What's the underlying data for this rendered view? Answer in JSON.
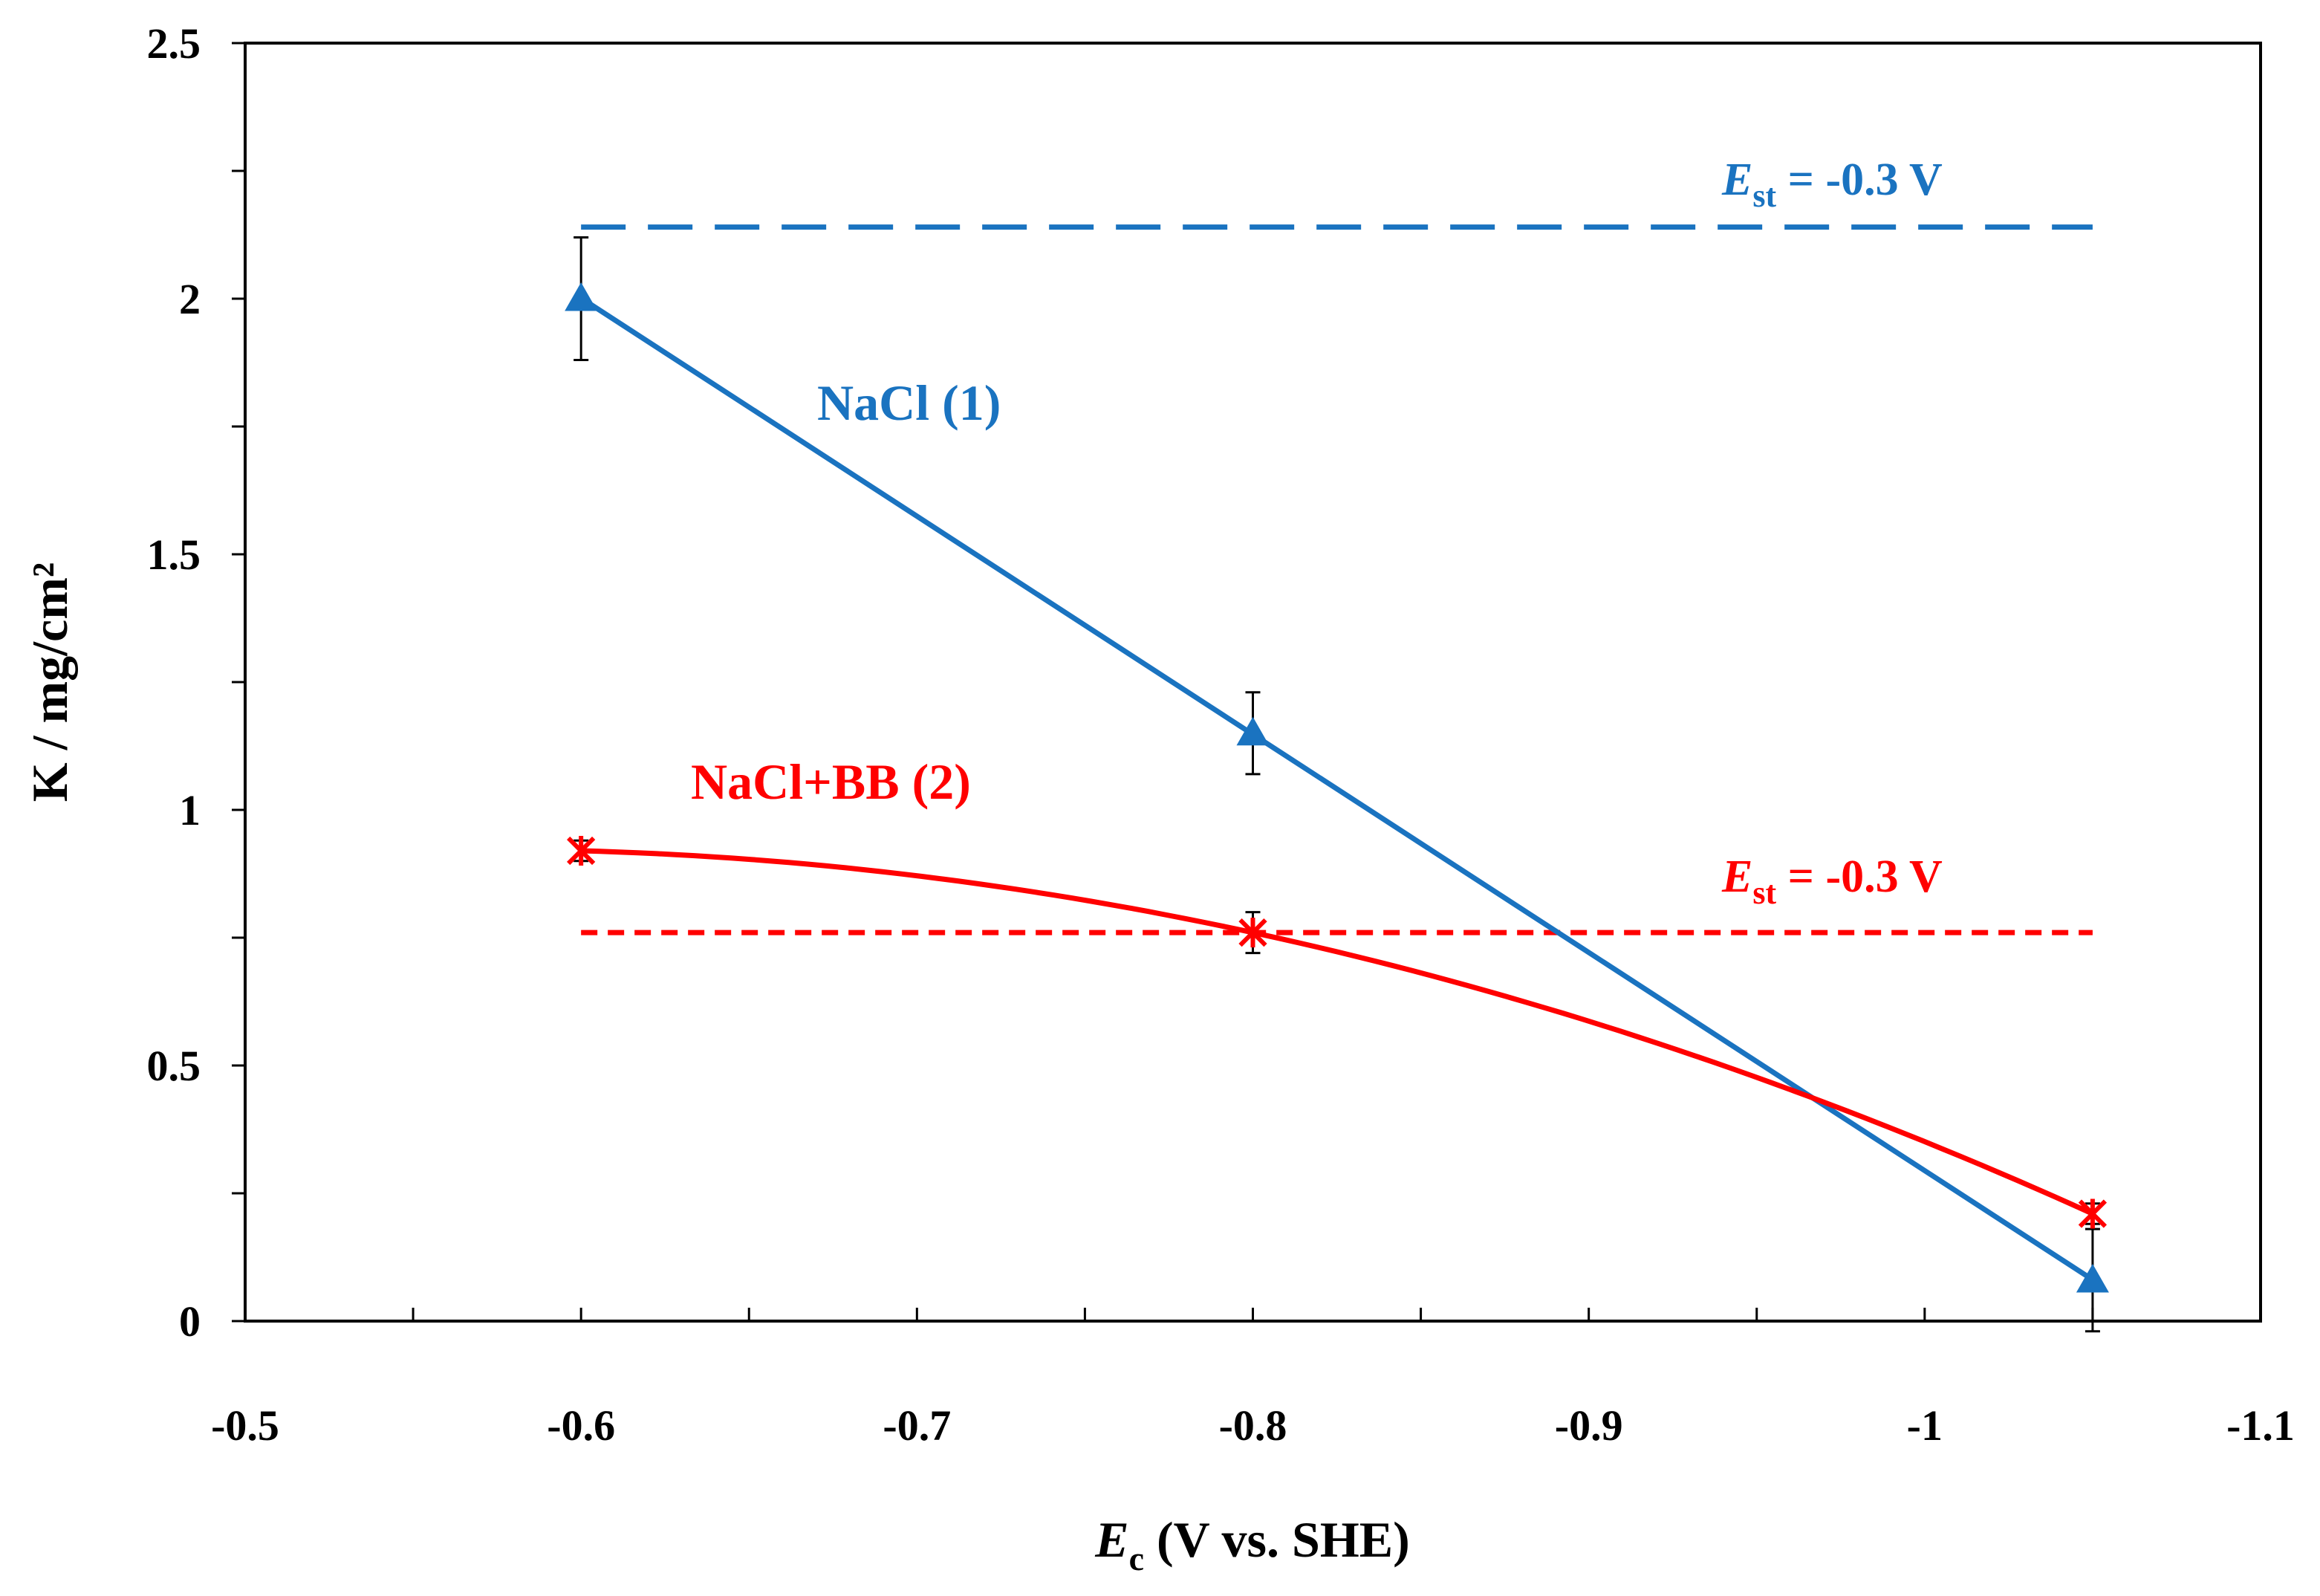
{
  "chart_data": {
    "type": "line",
    "title": "",
    "xlabel": {
      "italic": "E",
      "sub": "c",
      "rest": " (V vs. SHE)"
    },
    "ylabel": "K / mg/cm²",
    "xlim": [
      -0.5,
      -1.1
    ],
    "ylim": [
      0,
      2.5
    ],
    "x_ticks": [
      -0.5,
      -0.6,
      -0.7,
      -0.8,
      -0.9,
      -1,
      -1.1
    ],
    "x_tick_labels": [
      "-0.5",
      "-0.6",
      "-0.7",
      "-0.8",
      "-0.9",
      "-1",
      "-1.1"
    ],
    "y_ticks": [
      0,
      0.5,
      1,
      1.5,
      2,
      2.5
    ],
    "y_tick_labels": [
      "0",
      "0.5",
      "1",
      "1.5",
      "2",
      "2.5"
    ],
    "y_minor_step": 0.25,
    "x_minor_step": 0.05,
    "grid": false,
    "series": [
      {
        "name": "NaCl (1)",
        "color": "#1a73c0",
        "marker": "triangle",
        "x": [
          -0.6,
          -0.8,
          -1.05
        ],
        "y": [
          2.0,
          1.15,
          0.08
        ],
        "err": [
          0.12,
          0.08,
          0.1
        ],
        "fit": "linear"
      },
      {
        "name": "NaCl+BB (2)",
        "color": "#ff0000",
        "marker": "asterisk",
        "x": [
          -0.6,
          -0.8,
          -1.05
        ],
        "y": [
          0.92,
          0.76,
          0.21
        ],
        "err": [
          0.02,
          0.04,
          0.02
        ],
        "fit": "quadratic"
      }
    ],
    "reference_lines": [
      {
        "name": "Est NaCl",
        "y": 2.14,
        "x_range": [
          -0.6,
          -1.05
        ],
        "color": "#1a73c0",
        "style": "long-dash",
        "label": {
          "italic": "E",
          "sub": "st",
          "rest": " = -0.3 V"
        }
      },
      {
        "name": "Est NaCl+BB",
        "y": 0.76,
        "x_range": [
          -0.6,
          -1.05
        ],
        "color": "#ff0000",
        "style": "short-dash",
        "label": {
          "italic": "E",
          "sub": "st",
          "rest": " = -0.3 V"
        }
      }
    ],
    "annotations": [
      {
        "text": "NaCl (1)",
        "color": "#1a73c0"
      },
      {
        "text": "NaCl+BB (2)",
        "color": "#ff0000"
      }
    ]
  }
}
